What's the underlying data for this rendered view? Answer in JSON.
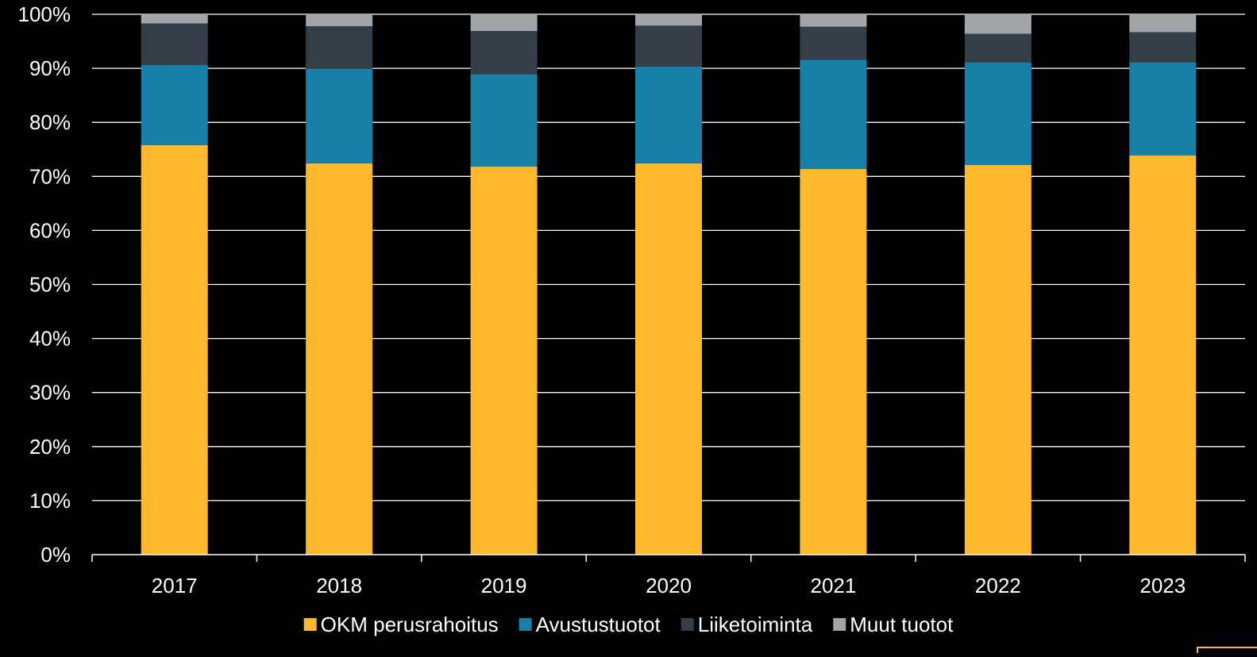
{
  "chart_data": {
    "type": "bar",
    "stacked": true,
    "percent_stacked": true,
    "categories": [
      "2017",
      "2018",
      "2019",
      "2020",
      "2021",
      "2022",
      "2023"
    ],
    "series": [
      {
        "name": "OKM perusrahoitus",
        "color": "#FDB92B",
        "values": [
          75.8,
          72.4,
          71.8,
          72.4,
          71.4,
          72.1,
          73.9
        ]
      },
      {
        "name": "Avustustuotot",
        "color": "#1680A9",
        "values": [
          14.8,
          17.5,
          17.1,
          17.9,
          20.2,
          19.0,
          17.2
        ]
      },
      {
        "name": "Liiketoiminta",
        "color": "#333E47",
        "values": [
          7.7,
          7.9,
          8.0,
          7.6,
          6.1,
          5.3,
          5.6
        ]
      },
      {
        "name": "Muut tuotot",
        "color": "#A2A5A8",
        "values": [
          1.7,
          2.2,
          3.1,
          2.1,
          2.3,
          3.6,
          3.3
        ]
      }
    ],
    "yticks": [
      "0%",
      "10%",
      "20%",
      "30%",
      "40%",
      "50%",
      "60%",
      "70%",
      "80%",
      "90%",
      "100%"
    ],
    "ylim": [
      0,
      100
    ],
    "grid": true,
    "legend_position": "bottom",
    "colors": {
      "background": "#000000",
      "gridline": "#FFFFFF",
      "text": "#FFFFFF",
      "accent_corner": "#FDB92B"
    }
  }
}
